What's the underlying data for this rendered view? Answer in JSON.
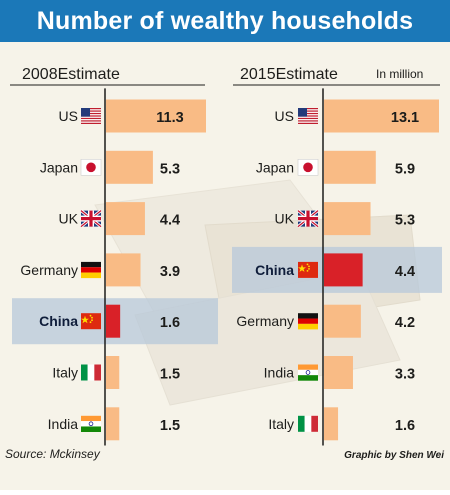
{
  "title": "Number of wealthy households",
  "unit_note": "In million",
  "source": "Source: Mckinsey",
  "credit": "Graphic by Shen Wei",
  "colors": {
    "title_bar": "#1b78b8",
    "bar": "#f9bb85",
    "bar_china": "#d92128",
    "highlight_band": "#b7c8da",
    "label_china": "#0f1d3a",
    "text": "#1d1d1b"
  },
  "chart_data": [
    {
      "type": "bar",
      "orientation": "horizontal",
      "title": "2008Estimate",
      "categories": [
        "US",
        "Japan",
        "UK",
        "Germany",
        "China",
        "Italy",
        "India"
      ],
      "values": [
        11.3,
        5.3,
        4.4,
        3.9,
        1.6,
        1.5,
        1.5
      ],
      "highlight": "China",
      "flags": [
        "us-flag",
        "japan-flag",
        "uk-flag",
        "germany-flag",
        "china-flag",
        "italy-flag",
        "india-flag"
      ]
    },
    {
      "type": "bar",
      "orientation": "horizontal",
      "title": "2015Estimate",
      "categories": [
        "US",
        "Japan",
        "UK",
        "China",
        "Germany",
        "India",
        "Italy"
      ],
      "values": [
        13.1,
        5.9,
        5.3,
        4.4,
        4.2,
        3.3,
        1.6
      ],
      "highlight": "China",
      "flags": [
        "us-flag",
        "japan-flag",
        "uk-flag",
        "china-flag",
        "germany-flag",
        "india-flag",
        "italy-flag"
      ]
    }
  ]
}
